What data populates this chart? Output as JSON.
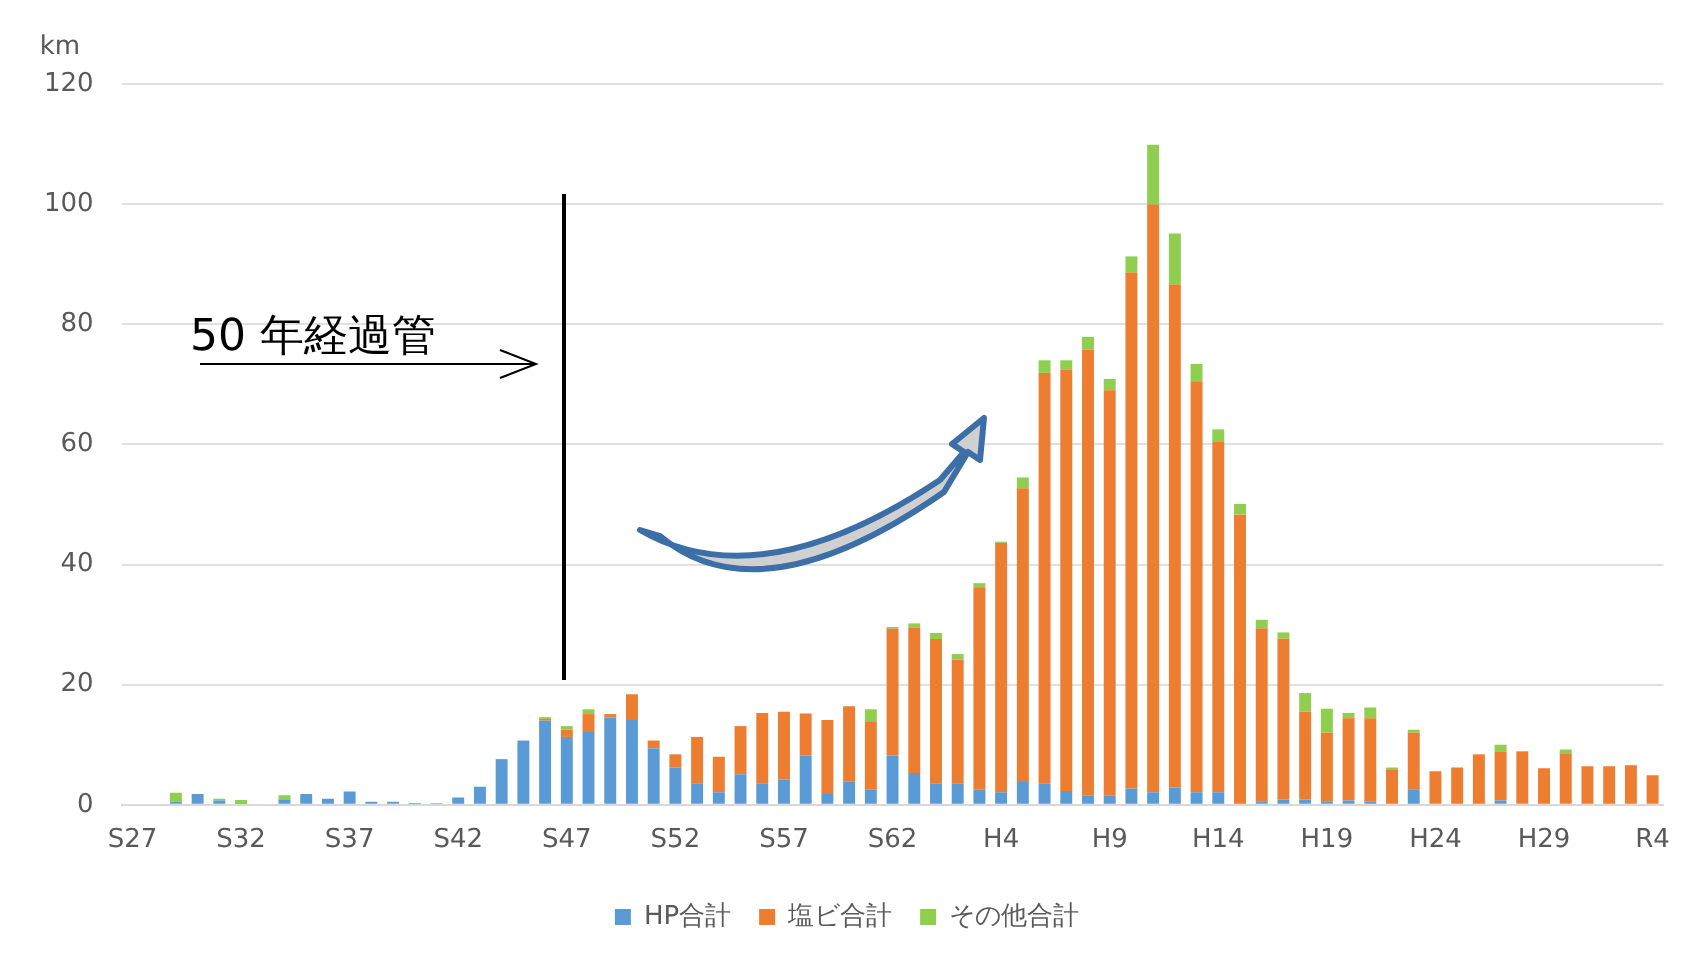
{
  "chart_data": {
    "type": "bar",
    "stacked": true,
    "ylabel": "km",
    "categories": [
      "S27",
      null,
      null,
      null,
      null,
      "S32",
      null,
      null,
      null,
      null,
      "S37",
      null,
      null,
      null,
      null,
      "S42",
      null,
      null,
      null,
      null,
      "S47",
      null,
      null,
      null,
      null,
      "S52",
      null,
      null,
      null,
      null,
      "S57",
      null,
      null,
      null,
      null,
      "S62",
      null,
      null,
      null,
      null,
      "H4",
      null,
      null,
      null,
      null,
      "H9",
      null,
      null,
      null,
      null,
      "H14",
      null,
      null,
      null,
      null,
      "H19",
      null,
      null,
      null,
      null,
      "H24",
      null,
      null,
      null,
      null,
      "H29",
      null,
      null,
      null,
      null,
      "R4"
    ],
    "series": [
      {
        "name": "HP合計",
        "color": "#5b9bd5",
        "values": [
          0,
          0,
          0.5,
          1.8,
          0.7,
          0.3,
          0,
          0.8,
          1.8,
          1,
          2.2,
          0.5,
          0.5,
          0.3,
          0,
          1.2,
          3,
          7.6,
          10.7,
          14,
          11.3,
          12.1,
          14.5,
          14.1,
          9.4,
          6.2,
          3.6,
          2.1,
          5.1,
          3.6,
          4.2,
          8.2,
          1.8,
          3.9,
          2.5,
          8.2,
          5.3,
          3.6,
          3.6,
          2.5,
          2.1,
          3.8,
          3.5,
          2.3,
          1.5,
          1.5,
          2.7,
          2.1,
          2.9,
          2.1,
          2.1,
          0.3,
          0.6,
          0.9,
          0.9,
          0.6,
          0.7,
          0.5,
          0,
          2.6,
          0,
          0,
          0,
          0.7,
          0,
          0,
          0,
          0,
          0,
          0,
          0
        ]
      },
      {
        "name": "塩ビ合計",
        "color": "#ed7d31",
        "values": [
          0,
          0,
          0,
          0,
          0,
          0,
          0,
          0,
          0,
          0,
          0,
          0,
          0,
          0,
          0,
          0,
          0,
          0,
          0,
          0.3,
          1.2,
          3,
          0.6,
          4.3,
          1.3,
          2.2,
          7.7,
          5.9,
          8,
          11.7,
          11.3,
          7,
          12.3,
          12.5,
          11.4,
          21.1,
          24.2,
          24,
          20.6,
          33.7,
          41.5,
          48.9,
          68.4,
          70.1,
          74.3,
          67.5,
          85.9,
          97.9,
          83.7,
          68.4,
          58.3,
          48,
          28.8,
          26.8,
          14.6,
          11.4,
          13.7,
          13.9,
          5.9,
          9.4,
          5.6,
          6.2,
          8.4,
          8.2,
          8.9,
          6.1,
          8.6,
          6.4,
          6.4,
          6.6,
          4.9
        ]
      },
      {
        "name": "その他合計",
        "color": "#8fce4f",
        "values": [
          0,
          0,
          1.5,
          0,
          0.3,
          0.5,
          0,
          0.8,
          0,
          0,
          0,
          0,
          0,
          0,
          0.3,
          0,
          0,
          0,
          0,
          0.3,
          0.6,
          0.8,
          0,
          0,
          0,
          0,
          0,
          0,
          0,
          0,
          0,
          0,
          0,
          0,
          2,
          0.3,
          0.7,
          1,
          0.9,
          0.7,
          0.2,
          1.8,
          2.1,
          1.6,
          2.1,
          1.9,
          2.7,
          9.9,
          8.5,
          2.9,
          2.1,
          1.8,
          1.4,
          1,
          3.1,
          4,
          0.9,
          1.8,
          0.3,
          0.5,
          0,
          0,
          0,
          1.1,
          0,
          0,
          0.6,
          0,
          0,
          0,
          0
        ]
      }
    ],
    "ylim": [
      0,
      120
    ],
    "yticks": [
      0,
      20,
      40,
      60,
      80,
      100,
      120
    ],
    "grid": "y",
    "legend": "bottom",
    "annotations": [
      "50 年経過管"
    ]
  }
}
